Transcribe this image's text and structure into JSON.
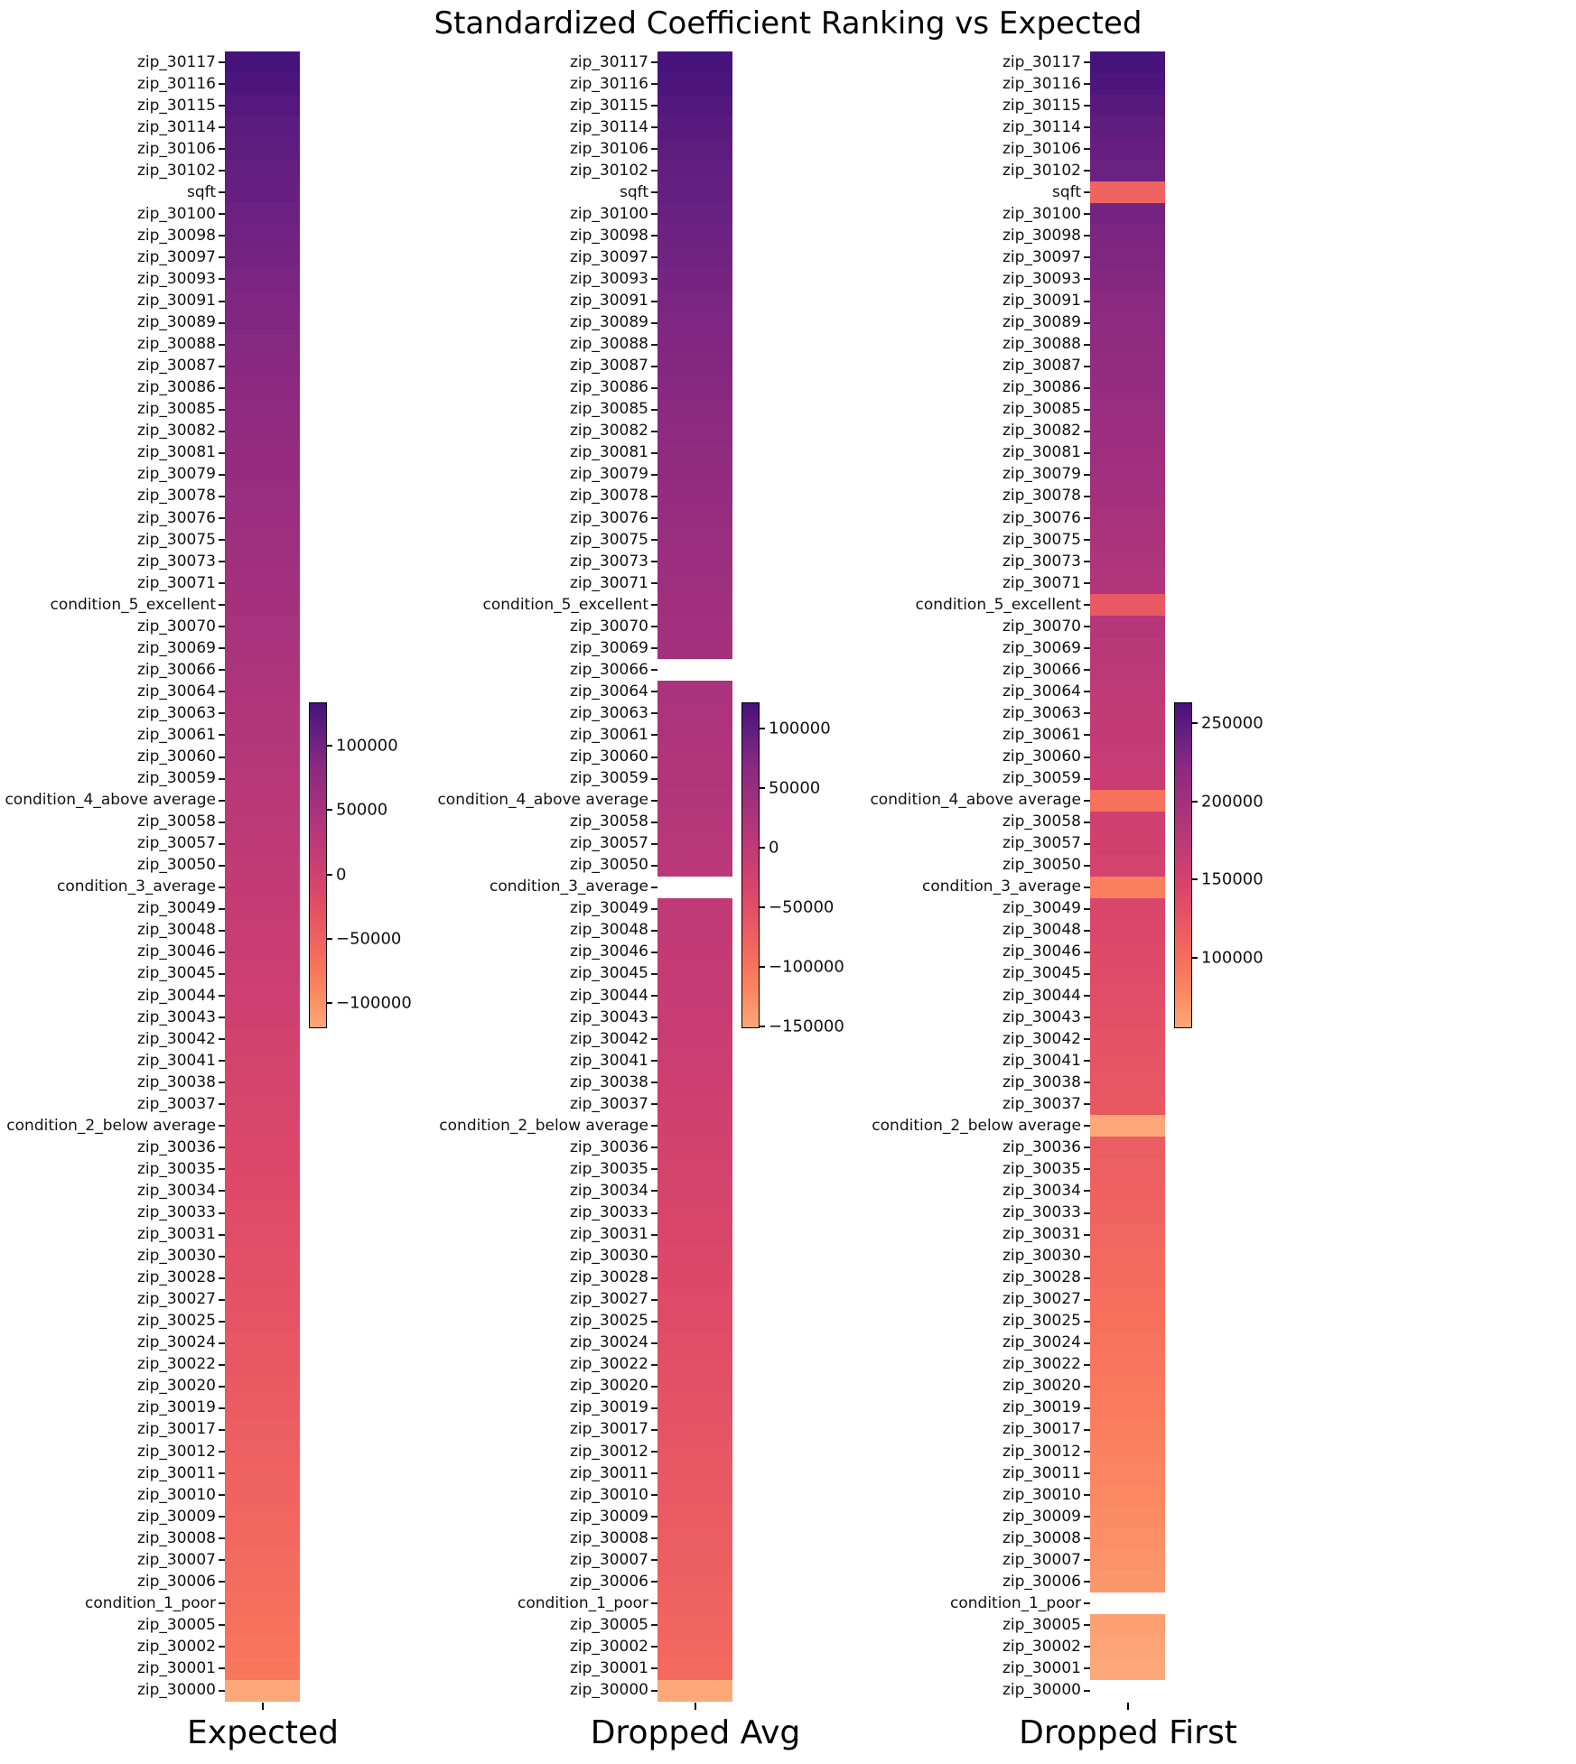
{
  "title": "Standardized Coefficient Ranking vs Expected",
  "colormap": {
    "name": "magma-truncated-reversed",
    "nan_color": "#ffffff",
    "stops": [
      {
        "t": 0.0,
        "color": "#fca878"
      },
      {
        "t": 0.1,
        "color": "#fc8961"
      },
      {
        "t": 0.2,
        "color": "#f7705c"
      },
      {
        "t": 0.3,
        "color": "#ea5c62"
      },
      {
        "t": 0.4,
        "color": "#de4968"
      },
      {
        "t": 0.5,
        "color": "#ca3e72"
      },
      {
        "t": 0.6,
        "color": "#b73779"
      },
      {
        "t": 0.7,
        "color": "#a1307e"
      },
      {
        "t": 0.8,
        "color": "#8c2981"
      },
      {
        "t": 0.9,
        "color": "#672081"
      },
      {
        "t": 1.0,
        "color": "#46127b"
      }
    ]
  },
  "chart_data": {
    "type": "heatmap",
    "title": "Standardized Coefficient Ranking vs Expected",
    "orientation": "vertical-single-column-per-panel",
    "rows": [
      "zip_30117",
      "zip_30116",
      "zip_30115",
      "zip_30114",
      "zip_30106",
      "zip_30102",
      "sqft",
      "zip_30100",
      "zip_30098",
      "zip_30097",
      "zip_30093",
      "zip_30091",
      "zip_30089",
      "zip_30088",
      "zip_30087",
      "zip_30086",
      "zip_30085",
      "zip_30082",
      "zip_30081",
      "zip_30079",
      "zip_30078",
      "zip_30076",
      "zip_30075",
      "zip_30073",
      "zip_30071",
      "condition_5_excellent",
      "zip_30070",
      "zip_30069",
      "zip_30066",
      "zip_30064",
      "zip_30063",
      "zip_30061",
      "zip_30060",
      "zip_30059",
      "condition_4_above average",
      "zip_30058",
      "zip_30057",
      "zip_30050",
      "condition_3_average",
      "zip_30049",
      "zip_30048",
      "zip_30046",
      "zip_30045",
      "zip_30044",
      "zip_30043",
      "zip_30042",
      "zip_30041",
      "zip_30038",
      "zip_30037",
      "condition_2_below average",
      "zip_30036",
      "zip_30035",
      "zip_30034",
      "zip_30033",
      "zip_30031",
      "zip_30030",
      "zip_30028",
      "zip_30027",
      "zip_30025",
      "zip_30024",
      "zip_30022",
      "zip_30020",
      "zip_30019",
      "zip_30017",
      "zip_30012",
      "zip_30011",
      "zip_30010",
      "zip_30009",
      "zip_30008",
      "zip_30007",
      "zip_30006",
      "condition_1_poor",
      "zip_30005",
      "zip_30002",
      "zip_30001",
      "zip_30000"
    ],
    "panels": [
      {
        "label": "Expected",
        "colorbar_ticks": [
          100000,
          50000,
          0,
          -50000,
          -100000
        ],
        "values": [
          133000,
          128000,
          122000,
          117000,
          113000,
          110000,
          108000,
          104000,
          101000,
          98000,
          95000,
          92000,
          89000,
          86000,
          84000,
          81000,
          78000,
          75000,
          72000,
          70000,
          67000,
          64000,
          61000,
          58000,
          56000,
          53000,
          50000,
          47000,
          44000,
          41000,
          38000,
          36000,
          33000,
          30000,
          28000,
          25000,
          22000,
          19000,
          16000,
          13000,
          11000,
          8000,
          6000,
          3000,
          1000,
          -2000,
          -4000,
          -7000,
          -9000,
          -12000,
          -14000,
          -17000,
          -19000,
          -22000,
          -24000,
          -27000,
          -29000,
          -32000,
          -34000,
          -37000,
          -39000,
          -42000,
          -44000,
          -47000,
          -49000,
          -52000,
          -54000,
          -57000,
          -59000,
          -62000,
          -64000,
          -67000,
          -70000,
          -73000,
          -76000,
          -120000
        ]
      },
      {
        "label": "Dropped Avg",
        "colorbar_ticks": [
          100000,
          50000,
          0,
          -50000,
          -100000,
          -150000
        ],
        "values": [
          121000,
          116000,
          110000,
          105000,
          101000,
          98000,
          96000,
          92000,
          89000,
          86000,
          83000,
          80000,
          77000,
          74000,
          72000,
          69000,
          66000,
          63000,
          60000,
          58000,
          55000,
          52000,
          49000,
          46000,
          44000,
          41000,
          38000,
          35000,
          null,
          29000,
          26000,
          24000,
          21000,
          18000,
          16000,
          13000,
          10000,
          7000,
          null,
          1000,
          -1000,
          -4000,
          -6000,
          -9000,
          -11000,
          -14000,
          -16000,
          -19000,
          -21000,
          -24000,
          -26000,
          -29000,
          -31000,
          -34000,
          -36000,
          -39000,
          -41000,
          -44000,
          -46000,
          -49000,
          -51000,
          -54000,
          -56000,
          -59000,
          -61000,
          -64000,
          -66000,
          -69000,
          -71000,
          -74000,
          -76000,
          -79000,
          -82000,
          -85000,
          -88000,
          -152000
        ]
      },
      {
        "label": "Dropped First",
        "colorbar_ticks": [
          250000,
          200000,
          150000,
          100000
        ],
        "values": [
          263000,
          258000,
          252000,
          247000,
          243000,
          240000,
          108000,
          234000,
          231000,
          228000,
          225000,
          222000,
          219000,
          216000,
          214000,
          211000,
          208000,
          205000,
          202000,
          200000,
          197000,
          194000,
          191000,
          188000,
          186000,
          120000,
          180000,
          177000,
          174000,
          171000,
          168000,
          166000,
          163000,
          160000,
          95000,
          155000,
          152000,
          149000,
          83000,
          143000,
          141000,
          138000,
          136000,
          133000,
          131000,
          128000,
          126000,
          123000,
          121000,
          55000,
          116000,
          113000,
          111000,
          108000,
          106000,
          103000,
          101000,
          98000,
          96000,
          93000,
          91000,
          88000,
          86000,
          83000,
          81000,
          78000,
          76000,
          73000,
          71000,
          68000,
          66000,
          null,
          60000,
          57000,
          54000,
          null
        ]
      }
    ]
  }
}
